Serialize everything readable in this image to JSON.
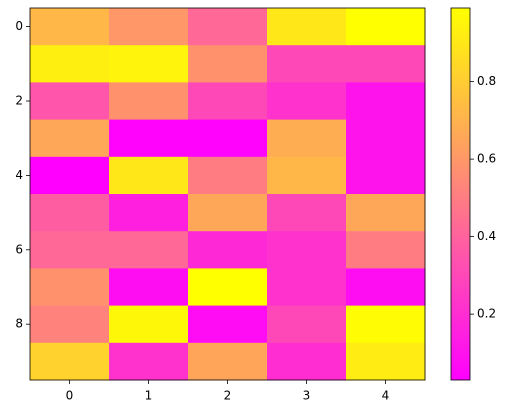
{
  "chart_data": {
    "type": "heatmap",
    "colormap": "spring",
    "z": [
      [
        0.72,
        0.6,
        0.42,
        0.9,
        0.99
      ],
      [
        0.93,
        0.95,
        0.58,
        0.3,
        0.3
      ],
      [
        0.35,
        0.58,
        0.3,
        0.22,
        0.1
      ],
      [
        0.66,
        0.04,
        0.04,
        0.68,
        0.1
      ],
      [
        0.03,
        0.9,
        0.5,
        0.72,
        0.1
      ],
      [
        0.38,
        0.15,
        0.66,
        0.3,
        0.66
      ],
      [
        0.42,
        0.42,
        0.18,
        0.22,
        0.5
      ],
      [
        0.58,
        0.08,
        0.99,
        0.22,
        0.08
      ],
      [
        0.52,
        0.96,
        0.07,
        0.3,
        0.98
      ],
      [
        0.82,
        0.22,
        0.65,
        0.2,
        0.92
      ]
    ],
    "xlim": [
      -0.5,
      4.5
    ],
    "ylim": [
      9.5,
      -0.5
    ],
    "xticks": [
      0,
      1,
      2,
      3,
      4
    ],
    "yticks": [
      0,
      2,
      4,
      6,
      8
    ],
    "clim": [
      0.03,
      0.99
    ],
    "colorbar_ticks": [
      0.2,
      0.4,
      0.6,
      0.8
    ]
  }
}
